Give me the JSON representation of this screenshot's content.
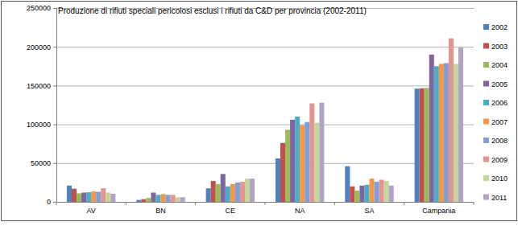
{
  "chart_data": {
    "type": "bar",
    "title": "Produzione di rifiuti speciali pericolosi esclusi i rifiuti da C&D per provincia (2002-2011)",
    "categories": [
      "AV",
      "BN",
      "CE",
      "NA",
      "SA",
      "Campania"
    ],
    "series": [
      {
        "name": "2002",
        "color": "#4f81bd",
        "values": [
          21000,
          2500,
          17500,
          56000,
          46000,
          146000
        ]
      },
      {
        "name": "2003",
        "color": "#c0504d",
        "values": [
          17000,
          3500,
          27000,
          76000,
          20000,
          146500
        ]
      },
      {
        "name": "2004",
        "color": "#9bbb59",
        "values": [
          11000,
          5000,
          23000,
          93000,
          14500,
          147000
        ]
      },
      {
        "name": "2005",
        "color": "#8064a2",
        "values": [
          12000,
          12000,
          36000,
          106000,
          21000,
          190000
        ]
      },
      {
        "name": "2006",
        "color": "#4bacc6",
        "values": [
          12500,
          9000,
          20000,
          110000,
          22000,
          175000
        ]
      },
      {
        "name": "2007",
        "color": "#f79646",
        "values": [
          13500,
          10000,
          23000,
          99000,
          30000,
          178000
        ]
      },
      {
        "name": "2008",
        "color": "#7f9fd6",
        "values": [
          13000,
          9000,
          25000,
          103000,
          26000,
          179000
        ]
      },
      {
        "name": "2009",
        "color": "#e6948f",
        "values": [
          17500,
          9000,
          26000,
          127000,
          28500,
          211000
        ]
      },
      {
        "name": "2010",
        "color": "#c3d69b",
        "values": [
          12000,
          6000,
          30000,
          102000,
          27000,
          178000
        ]
      },
      {
        "name": "2011",
        "color": "#b3a2c7",
        "values": [
          10500,
          6000,
          30000,
          128000,
          21000,
          199000
        ]
      }
    ],
    "ylim": [
      0,
      250000
    ],
    "yticks": [
      0,
      50000,
      100000,
      150000,
      200000,
      250000
    ],
    "grid": true,
    "legend": "right"
  }
}
